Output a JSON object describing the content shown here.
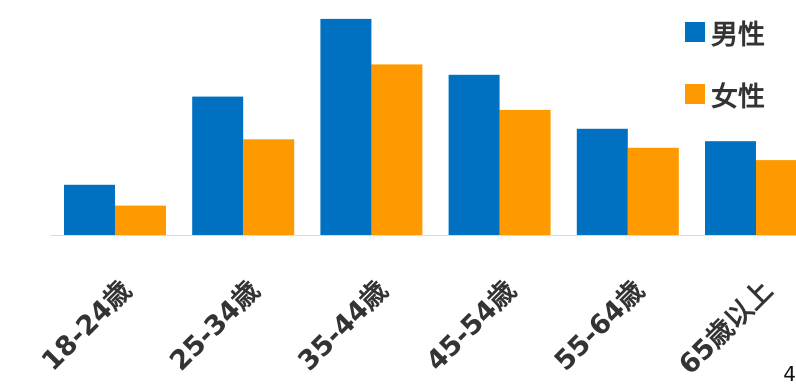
{
  "chart_data": {
    "type": "bar",
    "categories": [
      "18-24歳",
      "25-34歳",
      "35-44歳",
      "45-54歳",
      "55-64歳",
      "65歳以上"
    ],
    "series": [
      {
        "name": "男性",
        "values": [
          5.3,
          14.6,
          22.8,
          16.9,
          11.2,
          9.9
        ]
      },
      {
        "name": "女性",
        "values": [
          3.1,
          10.1,
          18.0,
          13.2,
          9.2,
          7.9
        ]
      }
    ],
    "ylim": [
      0,
      23
    ],
    "grid": false,
    "legend": "top-right",
    "colors": [
      "#0070C0",
      "#FF9900"
    ]
  },
  "page_number": "4"
}
